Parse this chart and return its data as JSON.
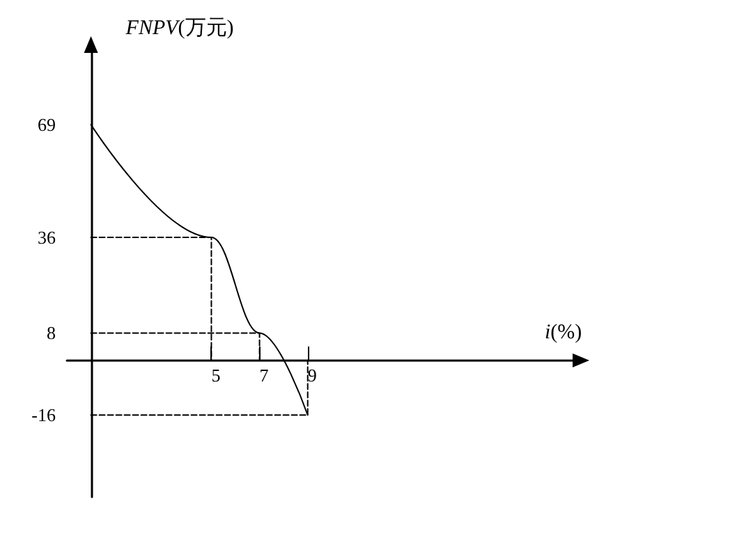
{
  "chart_data": {
    "type": "line",
    "xlabel": "i(%)",
    "ylabel": "FNPV(万元)",
    "x": [
      0,
      5,
      7,
      9
    ],
    "series": [
      {
        "color": "#000000",
        "values": [
          69,
          36,
          8,
          -16
        ]
      },
      {
        "color": "#000000",
        "x": [
          0,
          5,
          5
        ],
        "values": [
          36,
          36,
          0
        ],
        "line_style": "dashed"
      },
      {
        "color": "#000000",
        "x": [
          0,
          7,
          7
        ],
        "values": [
          8,
          8,
          0
        ],
        "line_style": "dashed"
      },
      {
        "color": "#000000",
        "x": [
          0,
          9,
          9
        ],
        "values": [
          -16,
          -16,
          0
        ],
        "line_style": "dashed"
      }
    ],
    "xlim": [
      -1,
      20
    ],
    "ylim": [
      -40,
      90
    ],
    "xticks": [
      5,
      7,
      9
    ],
    "yticks": [
      -16,
      8,
      36,
      69
    ],
    "marker": "none",
    "line_style": "solid"
  }
}
